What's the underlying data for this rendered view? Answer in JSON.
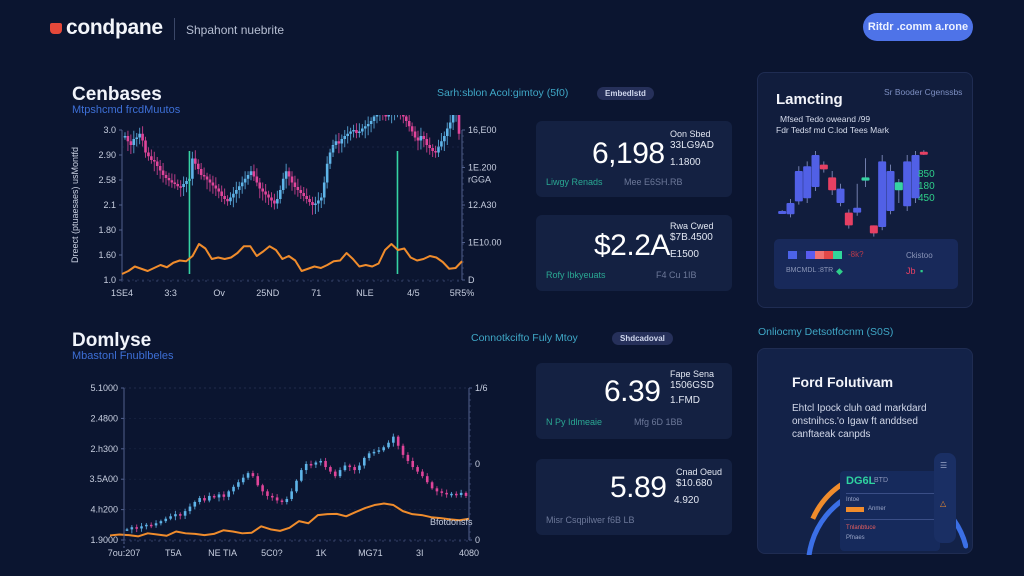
{
  "header": {
    "logo_text": "condpane",
    "subtitle": "Shpahont nuebrite",
    "cta_label": "Ritdr .comm a.rone"
  },
  "colors": {
    "background": "#0b1530",
    "accent_blue": "#4e73e8",
    "candle_up": "#5fb4e8",
    "candle_down": "#e0459a",
    "volume_line": "#f08c2c",
    "marker_green": "#36d3a3",
    "teal_caption": "#3fa7c6"
  },
  "section_top": {
    "title": "Cenbases",
    "subtitle": "Mtpshcmd frcdMuutos",
    "chart_caption": "Sarh:sblon Acol:gimtoy (5f0)",
    "pill": "Embedlstd"
  },
  "section_bottom": {
    "title": "Domlyse",
    "subtitle": "Mbastonl Fnublbeles",
    "chart_caption": "Connotkcifto Fuly Mtoy",
    "pill": "Shdcadoval"
  },
  "chart_data": [
    {
      "type": "line",
      "title": "Cenbases",
      "ylabel": "Dreect (ptuaesaes) usMontfd",
      "xlabel": "",
      "x_ticks": [
        "1SE4",
        "3:3",
        "Ov",
        "25ND",
        "71",
        "NLE",
        "4/5",
        "5R5%"
      ],
      "y_ticks_left": [
        "1.0",
        "1.60",
        "1.80",
        "2.1",
        "2.58",
        "2.90",
        "3.0"
      ],
      "y_ticks_right": [
        "D",
        "1E10.00",
        "12.A30",
        "1E.200",
        "16,E00"
      ],
      "y_right_secondary": "rGGA",
      "ylim": [
        1.0,
        3.0
      ],
      "grid": true,
      "markers": [
        {
          "x_index": 22,
          "label": "signal-1"
        },
        {
          "x_index": 93,
          "label": "signal-2"
        }
      ],
      "series": [
        {
          "name": "price",
          "kind": "candles",
          "values": [
            2.92,
            2.85,
            2.8,
            2.88,
            2.9,
            2.95,
            2.86,
            2.7,
            2.65,
            2.6,
            2.58,
            2.52,
            2.46,
            2.4,
            2.36,
            2.33,
            2.3,
            2.28,
            2.25,
            2.24,
            2.28,
            2.32,
            2.35,
            2.62,
            2.55,
            2.48,
            2.4,
            2.38,
            2.34,
            2.3,
            2.26,
            2.22,
            2.18,
            2.12,
            2.08,
            2.05,
            2.1,
            2.15,
            2.2,
            2.25,
            2.3,
            2.35,
            2.4,
            2.45,
            2.38,
            2.3,
            2.22,
            2.18,
            2.14,
            2.1,
            2.06,
            2.02,
            2.08,
            2.2,
            2.35,
            2.45,
            2.38,
            2.3,
            2.24,
            2.2,
            2.16,
            2.12,
            2.08,
            2.04,
            2.0,
            2.02,
            2.06,
            2.1,
            2.3,
            2.55,
            2.7,
            2.8,
            2.85,
            2.82,
            2.88,
            2.92,
            2.95,
            2.98,
            3.0,
            2.96,
            2.98,
            3.02,
            3.05,
            3.08,
            3.12,
            3.18,
            3.2,
            3.22,
            3.2,
            3.18,
            3.22,
            3.25,
            3.28,
            3.3,
            3.24,
            3.18,
            3.12,
            3.05,
            2.98,
            2.9,
            2.86,
            2.92,
            2.88,
            2.8,
            2.76,
            2.72,
            2.7,
            2.78,
            2.85,
            2.92,
            3.02,
            3.1,
            3.2,
            3.22,
            2.95
          ],
          "up_color": "#5fb4e8",
          "down_color": "#e0459a"
        },
        {
          "name": "volume",
          "kind": "line",
          "values": [
            1.08,
            1.12,
            1.18,
            1.15,
            1.12,
            1.16,
            1.2,
            1.17,
            1.23,
            1.26,
            1.25,
            1.32,
            1.48,
            1.42,
            1.28,
            1.3,
            1.28,
            1.3,
            1.36,
            1.45,
            1.45,
            1.32,
            1.38,
            1.45,
            1.4,
            1.28,
            1.32,
            1.26,
            1.12,
            1.15,
            1.18,
            1.16,
            1.2,
            1.25,
            1.26,
            1.36,
            1.28,
            1.18,
            1.2,
            1.18,
            1.22,
            1.4,
            1.48,
            1.4,
            1.42,
            1.3,
            1.26,
            1.28,
            1.32,
            1.3,
            1.24,
            1.15,
            1.16,
            1.25
          ],
          "color": "#f08c2c"
        }
      ]
    },
    {
      "type": "line",
      "title": "Domlyse",
      "xlabel": "",
      "ylabel": "",
      "x_ticks": [
        "7ou:207",
        "T5A",
        "NE TIA",
        "5C0?",
        "1K",
        "MG71",
        "3I",
        "4080"
      ],
      "y_ticks_left": [
        "1.9000",
        "4.h200",
        "3.5A00",
        "2.h300",
        "2.4800",
        "5.1000"
      ],
      "y_ticks_right": [
        "0",
        "0",
        "1/6"
      ],
      "ylim": [
        0,
        5
      ],
      "grid": true,
      "annotation": "Bfotdonsfs",
      "series": [
        {
          "name": "price",
          "kind": "candles",
          "values": [
            0.35,
            0.42,
            0.38,
            0.45,
            0.5,
            0.48,
            0.55,
            0.62,
            0.7,
            0.78,
            0.85,
            0.8,
            0.95,
            1.1,
            1.25,
            1.38,
            1.3,
            1.45,
            1.4,
            1.5,
            1.42,
            1.6,
            1.75,
            1.9,
            2.05,
            2.2,
            2.1,
            1.8,
            1.6,
            1.45,
            1.4,
            1.3,
            1.25,
            1.35,
            1.6,
            1.95,
            2.3,
            2.5,
            2.48,
            2.55,
            2.6,
            2.4,
            2.25,
            2.1,
            2.3,
            2.45,
            2.4,
            2.3,
            2.45,
            2.7,
            2.85,
            2.9,
            2.95,
            3.05,
            3.2,
            3.4,
            3.1,
            2.8,
            2.6,
            2.4,
            2.25,
            2.1,
            1.9,
            1.7,
            1.6,
            1.55,
            1.5,
            1.52,
            1.48,
            1.55,
            1.45
          ],
          "up_color": "#5fb4e8",
          "down_color": "#e0459a"
        },
        {
          "name": "volume",
          "kind": "line",
          "values": [
            0.15,
            0.18,
            0.16,
            0.12,
            0.22,
            0.18,
            0.14,
            0.28,
            0.22,
            0.2,
            0.16,
            0.2,
            0.32,
            0.28,
            0.22,
            0.24,
            0.45,
            0.35,
            0.3,
            0.4,
            0.62,
            0.55,
            0.82,
            0.85,
            0.86,
            0.78,
            0.92,
            1.05,
            1.15,
            1.2,
            1.15,
            0.95,
            0.85,
            0.82,
            0.75,
            0.72,
            0.68,
            0.65,
            0.7
          ],
          "color": "#f08c2c"
        }
      ]
    },
    {
      "type": "bar",
      "title": "Lamcting",
      "kind": "candlestick",
      "candles": [
        {
          "open": 0.28,
          "close": 0.3,
          "high": 0.31,
          "low": 0.27,
          "color": "#5160e6"
        },
        {
          "open": 0.26,
          "close": 0.4,
          "high": 0.45,
          "low": 0.22,
          "color": "#5160e6"
        },
        {
          "open": 0.42,
          "close": 0.8,
          "high": 0.86,
          "low": 0.38,
          "color": "#5160e6"
        },
        {
          "open": 0.46,
          "close": 0.86,
          "high": 0.92,
          "low": 0.4,
          "color": "#5160e6"
        },
        {
          "open": 0.6,
          "close": 1.0,
          "high": 1.05,
          "low": 0.55,
          "color": "#5160e6"
        },
        {
          "open": 0.82,
          "close": 0.88,
          "high": 0.92,
          "low": 0.78,
          "color": "#e64063"
        },
        {
          "open": 0.72,
          "close": 0.56,
          "high": 0.8,
          "low": 0.5,
          "color": "#e64063"
        },
        {
          "open": 0.58,
          "close": 0.4,
          "high": 0.64,
          "low": 0.36,
          "color": "#5160e6"
        },
        {
          "open": 0.28,
          "close": 0.12,
          "high": 0.32,
          "low": 0.08,
          "color": "#e64063"
        },
        {
          "open": 0.34,
          "close": 0.28,
          "high": 0.64,
          "low": 0.24,
          "color": "#5160e6"
        },
        {
          "open": 0.68,
          "close": 0.72,
          "high": 0.96,
          "low": 0.6,
          "color": "#36d3a3"
        },
        {
          "open": 0.12,
          "close": 0.02,
          "high": 0.12,
          "low": -0.02,
          "color": "#e64063"
        },
        {
          "open": 0.1,
          "close": 0.92,
          "high": 1.0,
          "low": 0.06,
          "color": "#5160e6"
        },
        {
          "open": 0.3,
          "close": 0.8,
          "high": 0.88,
          "low": 0.26,
          "color": "#5160e6"
        },
        {
          "open": 0.56,
          "close": 0.66,
          "high": 0.7,
          "low": 0.4,
          "color": "#36d3a3"
        },
        {
          "open": 0.36,
          "close": 0.92,
          "high": 1.0,
          "low": 0.3,
          "color": "#5160e6"
        },
        {
          "open": 0.46,
          "close": 1.0,
          "high": 1.05,
          "low": 0.4,
          "color": "#5160e6"
        },
        {
          "open": 1.02,
          "close": 1.04,
          "high": 1.06,
          "low": 1.0,
          "color": "#e64063"
        }
      ],
      "value_labels": [
        "850",
        "180",
        "450"
      ]
    }
  ],
  "stats_top": [
    {
      "value": "6,198",
      "side_label": "Oon Sbed",
      "side_value": "33LG9AD",
      "side_small": "1.1800",
      "foot_left": "Liwgy Renads",
      "foot_right": "Mee E6SH.RB"
    },
    {
      "value": "$2.2A",
      "side_label": "Rwa Cwed",
      "side_value": "$7B.4500",
      "side_small": "E1500",
      "foot_left": "Rofy Ibkyeuats",
      "foot_right": "F4 Cu 1IB"
    }
  ],
  "stats_bottom": [
    {
      "value": "6.39",
      "side_label": "Fape Sena",
      "side_value": "1506GSD",
      "side_small": "1.FMD",
      "foot_left": "N Py Idlmeaie",
      "foot_right": "Mfg 6D 1BB"
    },
    {
      "value": "5.89",
      "side_label": "Cnad Oeud",
      "side_value": "$10.680",
      "side_small": "4.920",
      "foot_left": "Misr Csqpilwer f6B LB",
      "foot_right": ""
    }
  ],
  "panel_top": {
    "title": "Lamcting",
    "meta": "Sr Booder Cgenssbs",
    "desc_line1": "Mfsed Tedo oweand /99",
    "desc_line2": "Fdr Tedsf md C.lod Tees Mark",
    "legend_swatches": [
      "#4c63e8",
      "#1c2d62",
      "#5a5cf0",
      "#f07272",
      "#e24848",
      "#30d79a"
    ],
    "legend_text": "-8k?",
    "legend_right": "Ckistoo",
    "legend_foot": "BMCMDL :8TR",
    "legend_foot_r": "Jb"
  },
  "panel_bottom": {
    "header_caption": "Onliocmy Detsotfocnm (S0S)",
    "title": "Ford Folutivam",
    "desc": "Ehtcl Ipock cluh oad markdard onstnihcs.'o Igaw ft anddsed canftaeak canpds",
    "gauge_progress": 0.18,
    "gauge_text": "DG6L",
    "gauge_sub": "BTD",
    "list_items": [
      "Intoe",
      "Anmer",
      "Tnlanbtuce",
      "Pfnaes"
    ]
  }
}
